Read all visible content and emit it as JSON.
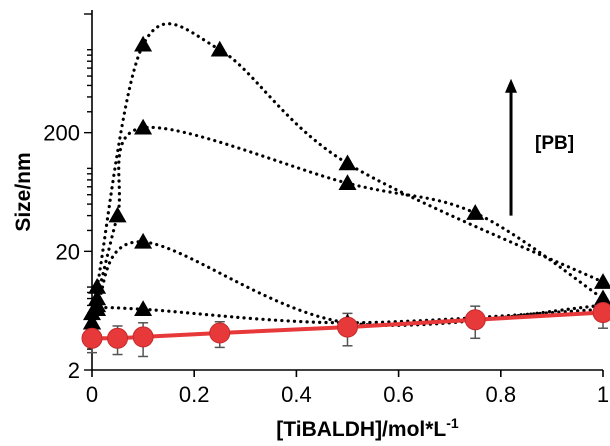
{
  "chart_data": {
    "type": "line",
    "xlabel": "[TiBALDH]/mol*L",
    "xlabel_superscript": "-1",
    "ylabel": "Size/nm",
    "y_scale": "log",
    "xlim": [
      0,
      1
    ],
    "ylim": [
      2,
      2000
    ],
    "x_ticks": [
      0,
      0.2,
      0.4,
      0.6,
      0.8,
      1
    ],
    "x_tick_labels": [
      "0",
      "0.2",
      "0.4",
      "0.6",
      "0.8",
      "1"
    ],
    "y_tick_labels": [
      {
        "value": 2,
        "label": "2"
      },
      {
        "value": 20,
        "label": "20"
      },
      {
        "value": 200,
        "label": "200"
      }
    ],
    "grid": false,
    "annotation": {
      "label": "[PB]",
      "arrow": "up",
      "x": 0.82,
      "y_from": 40,
      "y_to": 570
    },
    "series": [
      {
        "marker": "triangle",
        "color": "#000000",
        "line": "dotted",
        "x": [
          0,
          0.01,
          0.1,
          0.25,
          0.5,
          1
        ],
        "y": [
          6,
          10,
          1100,
          1000,
          110,
          11
        ]
      },
      {
        "marker": "triangle",
        "color": "#000000",
        "line": "dotted",
        "x": [
          0,
          0.01,
          0.05,
          0.1,
          0.5,
          0.75,
          1
        ],
        "y": [
          5,
          8,
          40,
          220,
          75,
          42,
          8
        ]
      },
      {
        "marker": "triangle",
        "color": "#000000",
        "line": "dotted",
        "x": [
          0,
          0.01,
          0.1,
          0.5,
          1
        ],
        "y": [
          5,
          7,
          24,
          5,
          7
        ]
      },
      {
        "marker": "triangle",
        "color": "#000000",
        "line": "dotted",
        "x": [
          0,
          0.01,
          0.1,
          0.5,
          1
        ],
        "y": [
          5,
          6.5,
          6.5,
          5,
          6.5
        ]
      },
      {
        "marker": "circle",
        "color": "#e8393a",
        "line": "solid",
        "x": [
          0,
          0.05,
          0.1,
          0.25,
          0.5,
          0.75,
          1
        ],
        "y": [
          3.7,
          3.7,
          3.8,
          4.1,
          4.6,
          5.3,
          6.1
        ],
        "error": [
          0.9,
          1.0,
          1.2,
          1.0,
          1.4,
          1.6,
          1.6
        ]
      }
    ]
  }
}
